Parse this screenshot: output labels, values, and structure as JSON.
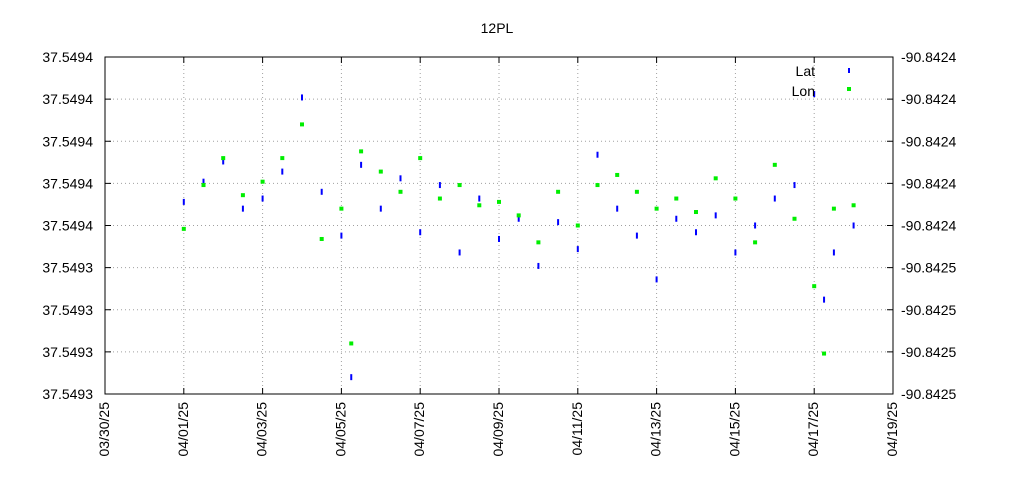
{
  "chart_data": {
    "type": "scatter",
    "title": "12PL",
    "xlabel": "",
    "ylabel": "",
    "y2label": "",
    "grid": true,
    "legend_position": "top-right",
    "x_range": [
      "03/30/25",
      "04/19/25"
    ],
    "x_ticks": [
      "03/30/25",
      "04/01/25",
      "04/03/25",
      "04/05/25",
      "04/07/25",
      "04/09/25",
      "04/11/25",
      "04/13/25",
      "04/15/25",
      "04/17/25",
      "04/19/25"
    ],
    "y_left_ticks": [
      "37.5493",
      "37.5493",
      "37.5493",
      "37.5493",
      "37.5494",
      "37.5494",
      "37.5494",
      "37.5494",
      "37.5494"
    ],
    "y_right_ticks": [
      "-90.8425",
      "-90.8425",
      "-90.8425",
      "-90.8425",
      "-90.8424",
      "-90.8424",
      "-90.8424",
      "-90.8424",
      "-90.8424"
    ],
    "series": [
      {
        "name": "Lat",
        "axis": "left",
        "color": "#0000ff",
        "marker": "vertical-dash",
        "points": [
          [
            "04/01/25 00:00",
            0.57
          ],
          [
            "04/01/25 12:00",
            0.63
          ],
          [
            "04/02/25 00:00",
            0.69
          ],
          [
            "04/02/25 12:00",
            0.55
          ],
          [
            "04/03/25 00:00",
            0.58
          ],
          [
            "04/03/25 12:00",
            0.66
          ],
          [
            "04/04/25 00:00",
            0.88
          ],
          [
            "04/04/25 12:00",
            0.6
          ],
          [
            "04/05/25 00:00",
            0.47
          ],
          [
            "04/05/25 06:00",
            0.05
          ],
          [
            "04/05/25 12:00",
            0.68
          ],
          [
            "04/06/25 00:00",
            0.55
          ],
          [
            "04/06/25 12:00",
            0.64
          ],
          [
            "04/07/25 00:00",
            0.48
          ],
          [
            "04/07/25 12:00",
            0.62
          ],
          [
            "04/08/25 00:00",
            0.42
          ],
          [
            "04/08/25 12:00",
            0.58
          ],
          [
            "04/09/25 00:00",
            0.46
          ],
          [
            "04/09/25 12:00",
            0.52
          ],
          [
            "04/10/25 00:00",
            0.38
          ],
          [
            "04/10/25 12:00",
            0.51
          ],
          [
            "04/11/25 00:00",
            0.43
          ],
          [
            "04/11/25 12:00",
            0.71
          ],
          [
            "04/12/25 00:00",
            0.55
          ],
          [
            "04/12/25 12:00",
            0.47
          ],
          [
            "04/13/25 00:00",
            0.34
          ],
          [
            "04/13/25 12:00",
            0.52
          ],
          [
            "04/14/25 00:00",
            0.48
          ],
          [
            "04/14/25 12:00",
            0.53
          ],
          [
            "04/15/25 00:00",
            0.42
          ],
          [
            "04/15/25 12:00",
            0.5
          ],
          [
            "04/16/25 00:00",
            0.58
          ],
          [
            "04/16/25 12:00",
            0.62
          ],
          [
            "04/17/25 00:00",
            0.89
          ],
          [
            "04/17/25 06:00",
            0.28
          ],
          [
            "04/17/25 12:00",
            0.42
          ],
          [
            "04/18/25 00:00",
            0.5
          ]
        ]
      },
      {
        "name": "Lon",
        "axis": "right",
        "color": "#00ee00",
        "marker": "square",
        "points": [
          [
            "04/01/25 00:00",
            0.49
          ],
          [
            "04/01/25 12:00",
            0.62
          ],
          [
            "04/02/25 00:00",
            0.7
          ],
          [
            "04/02/25 12:00",
            0.59
          ],
          [
            "04/03/25 00:00",
            0.63
          ],
          [
            "04/03/25 12:00",
            0.7
          ],
          [
            "04/04/25 00:00",
            0.8
          ],
          [
            "04/04/25 12:00",
            0.46
          ],
          [
            "04/05/25 00:00",
            0.55
          ],
          [
            "04/05/25 06:00",
            0.15
          ],
          [
            "04/05/25 12:00",
            0.72
          ],
          [
            "04/06/25 00:00",
            0.66
          ],
          [
            "04/06/25 12:00",
            0.6
          ],
          [
            "04/07/25 00:00",
            0.7
          ],
          [
            "04/07/25 12:00",
            0.58
          ],
          [
            "04/08/25 00:00",
            0.62
          ],
          [
            "04/08/25 12:00",
            0.56
          ],
          [
            "04/09/25 00:00",
            0.57
          ],
          [
            "04/09/25 12:00",
            0.53
          ],
          [
            "04/10/25 00:00",
            0.45
          ],
          [
            "04/10/25 12:00",
            0.6
          ],
          [
            "04/11/25 00:00",
            0.5
          ],
          [
            "04/11/25 12:00",
            0.62
          ],
          [
            "04/12/25 00:00",
            0.65
          ],
          [
            "04/12/25 12:00",
            0.6
          ],
          [
            "04/13/25 00:00",
            0.55
          ],
          [
            "04/13/25 12:00",
            0.58
          ],
          [
            "04/14/25 00:00",
            0.54
          ],
          [
            "04/14/25 12:00",
            0.64
          ],
          [
            "04/15/25 00:00",
            0.58
          ],
          [
            "04/15/25 12:00",
            0.45
          ],
          [
            "04/16/25 00:00",
            0.68
          ],
          [
            "04/16/25 12:00",
            0.52
          ],
          [
            "04/17/25 00:00",
            0.32
          ],
          [
            "04/17/25 06:00",
            0.12
          ],
          [
            "04/17/25 12:00",
            0.55
          ],
          [
            "04/18/25 00:00",
            0.56
          ]
        ]
      }
    ]
  }
}
